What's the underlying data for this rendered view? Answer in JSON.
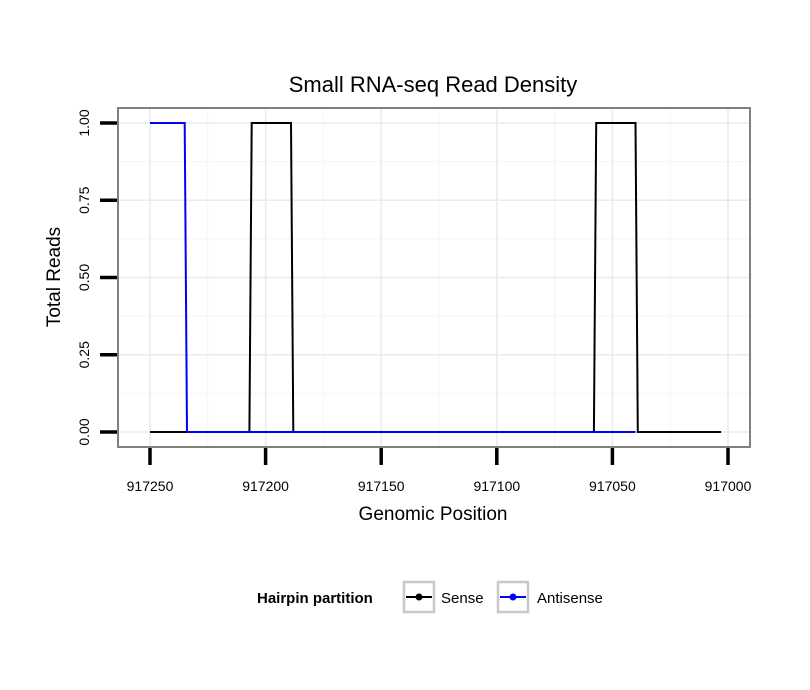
{
  "chart_data": {
    "type": "line",
    "title": "Small RNA-seq Read Density",
    "xlabel": "Genomic Position",
    "ylabel": "Total Reads",
    "xlim": [
      917250,
      917000
    ],
    "x_reversed": true,
    "ylim": [
      0,
      1
    ],
    "x_ticks": [
      917250,
      917200,
      917150,
      917100,
      917050,
      917000
    ],
    "x_tick_labels": [
      "917250",
      "917200",
      "917150",
      "917100",
      "917050",
      "917000"
    ],
    "y_ticks": [
      0,
      0.25,
      0.5,
      0.75,
      1
    ],
    "y_tick_labels": [
      "0.00",
      "0.25",
      "0.50",
      "0.75",
      "1.00"
    ],
    "grid": true,
    "legend": {
      "title": "Hairpin partition",
      "placement": "bottom",
      "entries": [
        "Sense",
        "Antisense"
      ]
    },
    "series": [
      {
        "name": "Sense",
        "color": "#000000",
        "x": [
          917250,
          917207,
          917206,
          917189,
          917188,
          917058,
          917057,
          917040,
          917039,
          917003
        ],
        "y": [
          0,
          0,
          1,
          1,
          0,
          0,
          1,
          1,
          0,
          0
        ]
      },
      {
        "name": "Antisense",
        "color": "#0000ff",
        "x": [
          917250,
          917235,
          917234,
          917206,
          917188,
          917058,
          917040
        ],
        "y": [
          1,
          1,
          0,
          0,
          0,
          0,
          0
        ]
      }
    ]
  }
}
